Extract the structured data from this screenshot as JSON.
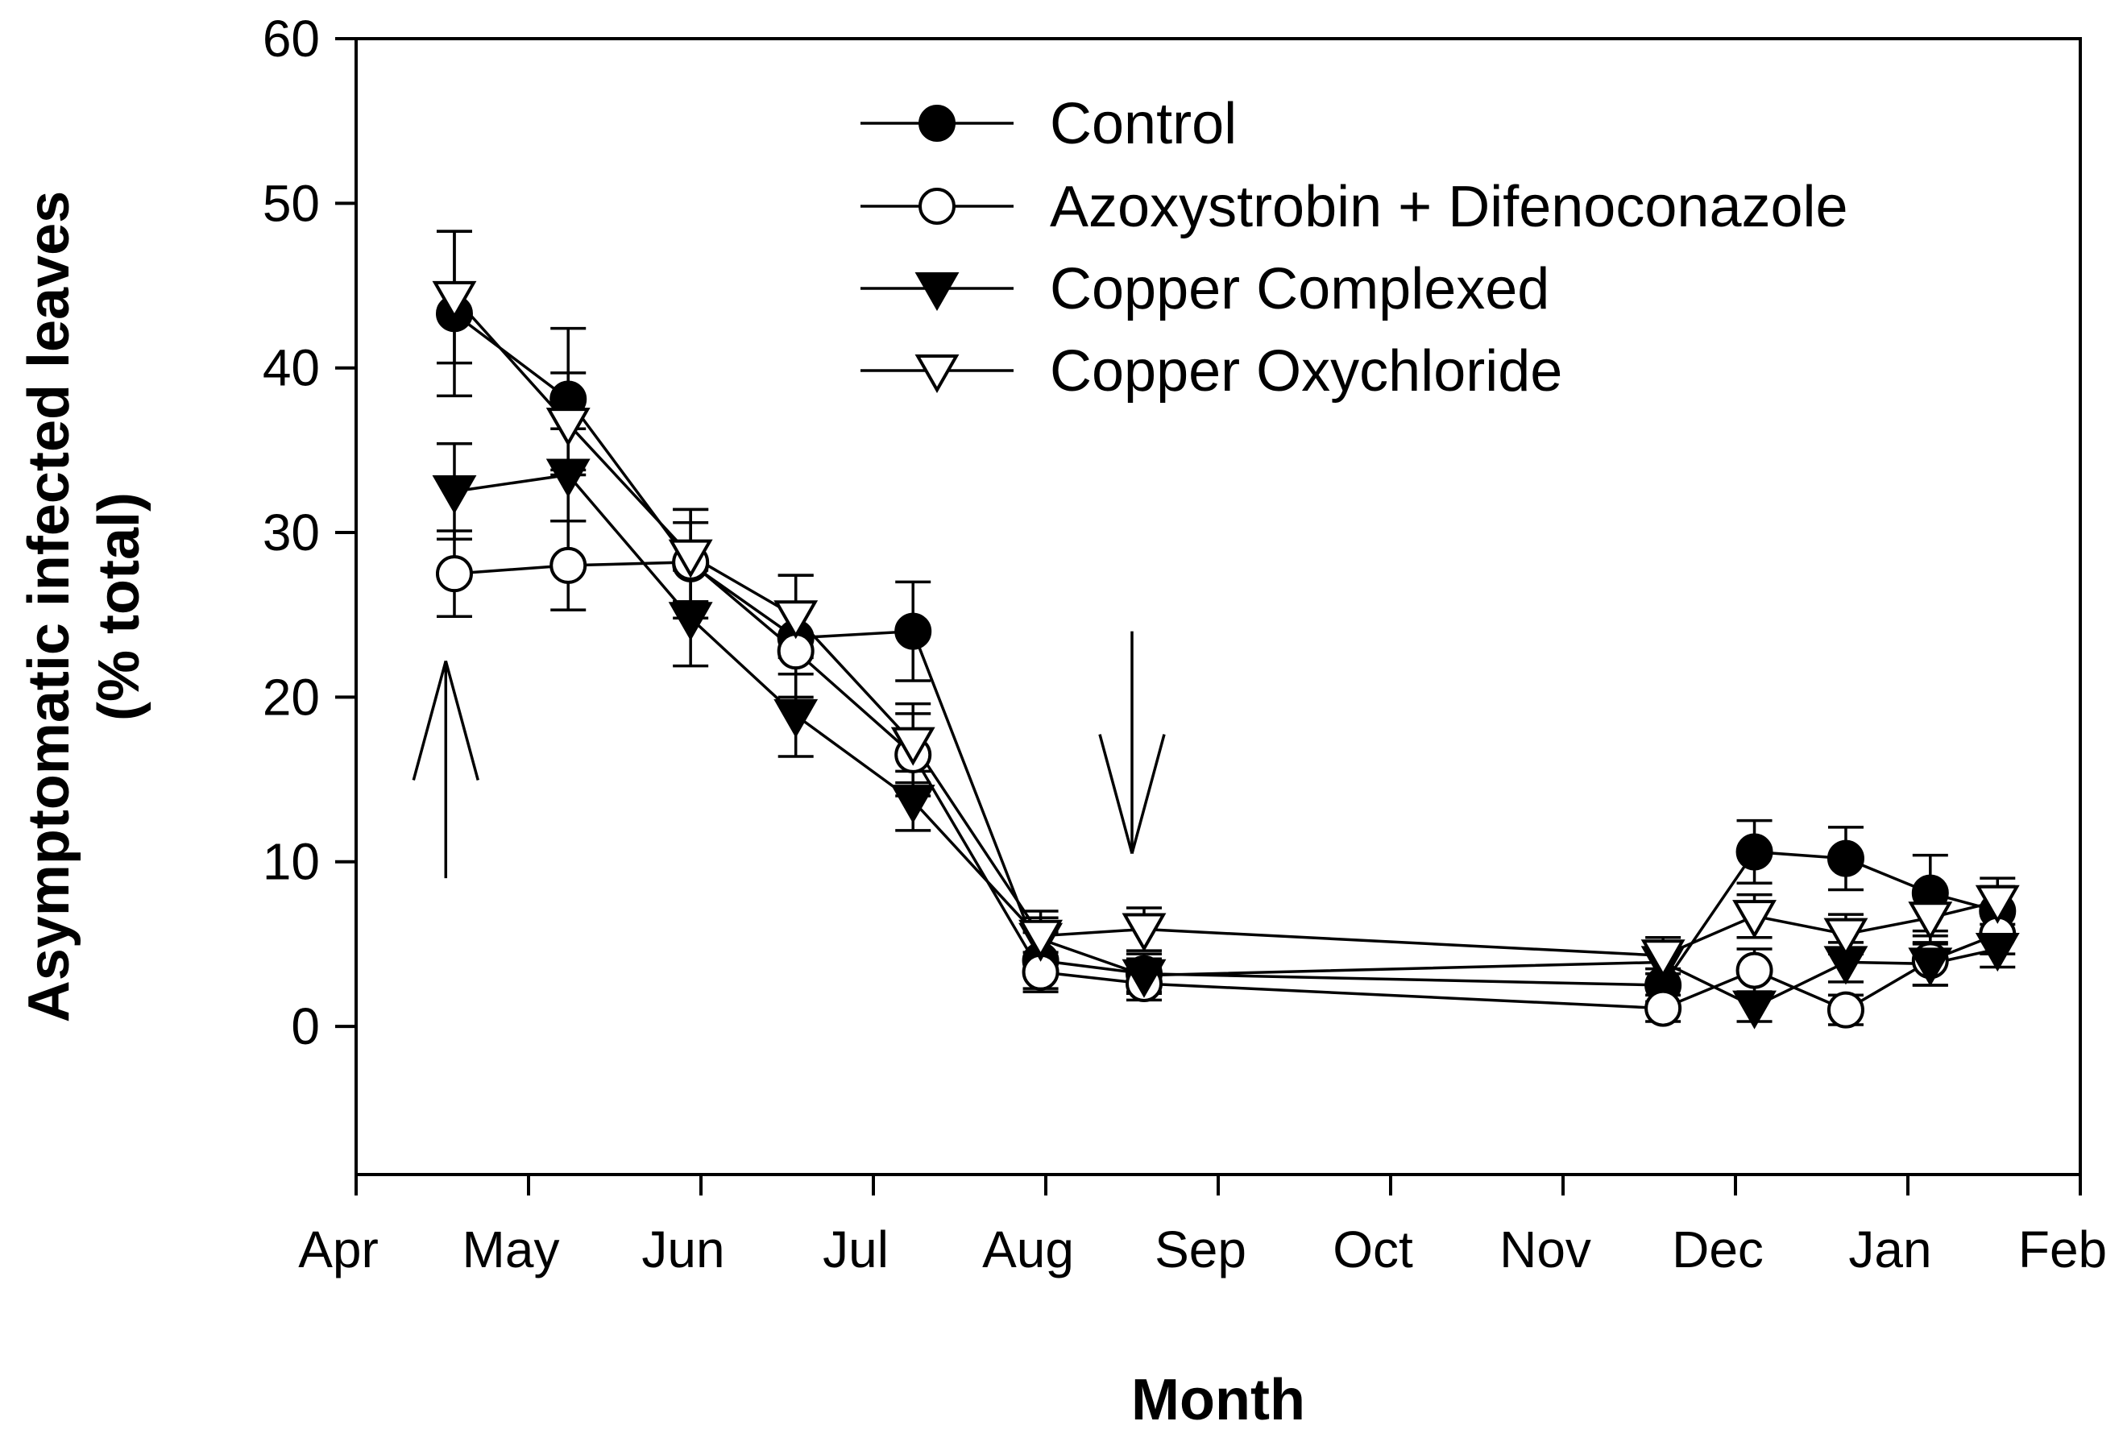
{
  "chart_data": {
    "type": "line",
    "title": "",
    "xlabel": "Month",
    "ylabel_line1": "Asymptomatic infected leaves",
    "ylabel_line2": "(% total)",
    "x_ticks": [
      "Apr",
      "May",
      "Jun",
      "Jul",
      "Aug",
      "Sep",
      "Oct",
      "Nov",
      "Dec",
      "Jan",
      "Feb"
    ],
    "xlim": [
      0,
      10
    ],
    "ylim": [
      -9,
      60
    ],
    "y_ticks": [
      0,
      10,
      20,
      30,
      40,
      50,
      60
    ],
    "legend_position": "top-center",
    "series": [
      {
        "name": "Control",
        "marker": "circle-filled",
        "x": [
          0.57,
          1.23,
          1.94,
          2.55,
          3.23,
          3.97,
          4.57,
          7.58,
          8.11,
          8.64,
          9.13,
          9.52
        ],
        "y": [
          43.3,
          38.1,
          28.1,
          23.6,
          24.0,
          4.0,
          3.2,
          2.5,
          10.6,
          10.2,
          8.1,
          7.0
        ],
        "err": [
          5.0,
          4.3,
          3.3,
          3.8,
          3.0,
          1.7,
          1.2,
          1.0,
          1.9,
          1.9,
          2.3,
          1.5
        ]
      },
      {
        "name": "Azoxystrobin + Difenoconazole",
        "marker": "circle-open",
        "x": [
          0.57,
          1.23,
          1.94,
          2.55,
          3.23,
          3.97,
          4.57,
          7.58,
          8.11,
          8.64,
          9.13,
          9.52
        ],
        "y": [
          27.5,
          28.0,
          28.2,
          22.8,
          16.5,
          3.3,
          2.6,
          1.1,
          3.4,
          1.0,
          4.0,
          5.6
        ],
        "err": [
          2.6,
          2.7,
          2.4,
          2.8,
          2.5,
          1.2,
          1.0,
          0.8,
          1.3,
          0.9,
          1.5,
          1.2
        ]
      },
      {
        "name": "Copper Complexed",
        "marker": "triangle-down-filled",
        "x": [
          0.57,
          1.23,
          1.94,
          2.55,
          3.23,
          3.97,
          4.57,
          7.58,
          8.11,
          8.64,
          9.13,
          9.52
        ],
        "y": [
          32.5,
          33.5,
          24.8,
          18.9,
          13.7,
          5.3,
          3.1,
          3.9,
          1.2,
          3.9,
          3.8,
          4.7
        ],
        "err": [
          2.9,
          2.8,
          2.9,
          2.5,
          1.8,
          1.3,
          1.0,
          1.2,
          0.9,
          1.2,
          1.3,
          1.1
        ]
      },
      {
        "name": "Copper Oxychloride",
        "marker": "triangle-down-open",
        "x": [
          0.57,
          1.23,
          1.94,
          2.55,
          3.23,
          3.97,
          4.57,
          7.58,
          8.11,
          8.64,
          9.13,
          9.52
        ],
        "y": [
          44.3,
          36.6,
          28.6,
          24.9,
          17.2,
          5.5,
          5.9,
          4.3,
          6.7,
          5.6,
          6.6,
          7.6
        ],
        "err": [
          4.0,
          3.1,
          2.8,
          2.5,
          2.4,
          1.5,
          1.3,
          1.1,
          1.3,
          1.2,
          1.6,
          1.4
        ]
      }
    ],
    "annotations": [
      {
        "type": "arrow-up",
        "x": 0.52,
        "y_tip": 22.2,
        "y_tail": 9.0,
        "label": ""
      },
      {
        "type": "arrow-down",
        "x": 4.5,
        "y_tip": 10.5,
        "y_tail": 24.0,
        "label": ""
      }
    ]
  }
}
